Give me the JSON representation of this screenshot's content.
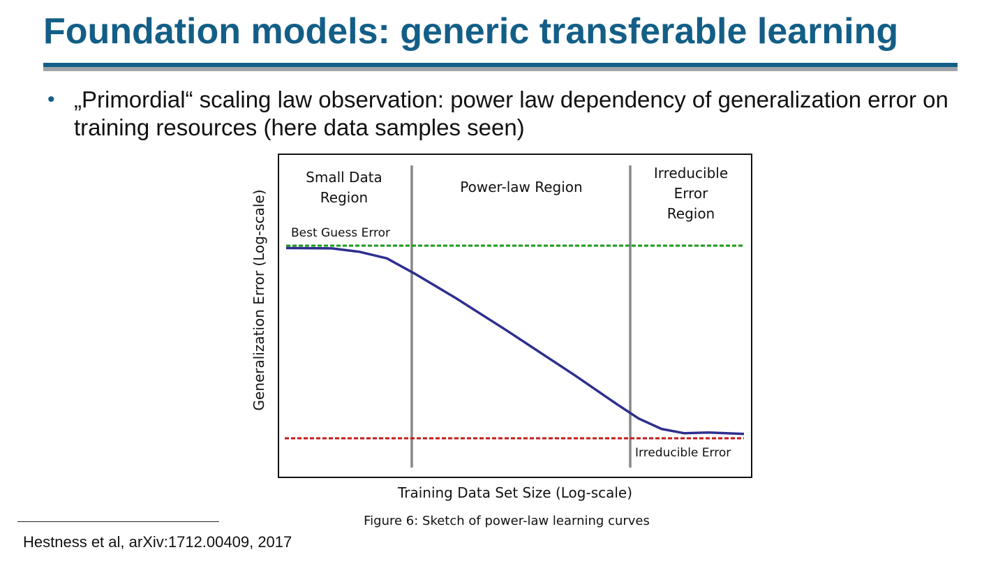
{
  "slide": {
    "title": "Foundation models: generic transferable learning",
    "bullet": "„Primordial“ scaling law observation: power law dependency of generalization error on training resources (here data samples seen)",
    "caption": "Figure 6: Sketch of power-law learning curves",
    "footnote": "Hestness et al, arXiv:1712.00409, 2017"
  },
  "chart_data": {
    "type": "line",
    "xlabel": "Training Data Set Size (Log-scale)",
    "ylabel": "Generalization Error (Log-scale)",
    "xscale": "log",
    "yscale": "log",
    "region_labels": {
      "small_data": [
        "Small Data",
        "Region"
      ],
      "power_law": [
        "Power-law Region"
      ],
      "irreducible": [
        "Irreducible",
        "Error",
        "Region"
      ]
    },
    "reference_lines": {
      "best_guess": {
        "label": "Best Guess Error",
        "color": "#1a9a1a",
        "style": "dashed"
      },
      "irreducible": {
        "label": "Irreducible Error",
        "color": "#c41a1a",
        "style": "dashed"
      }
    },
    "series": [
      {
        "color": "#2e2e8f",
        "x": [
          0.0,
          0.1,
          0.16,
          0.22,
          0.28,
          0.37,
          0.48,
          0.63,
          0.72,
          0.77,
          0.82,
          0.87,
          0.92,
          1.0
        ],
        "y": [
          0.995,
          0.993,
          0.975,
          0.94,
          0.86,
          0.73,
          0.56,
          0.32,
          0.17,
          0.09,
          0.035,
          0.012,
          0.016,
          0.008
        ]
      }
    ],
    "grid": false
  },
  "colors": {
    "title": "#135e87",
    "divider": "#888888",
    "frame": "#111111"
  }
}
